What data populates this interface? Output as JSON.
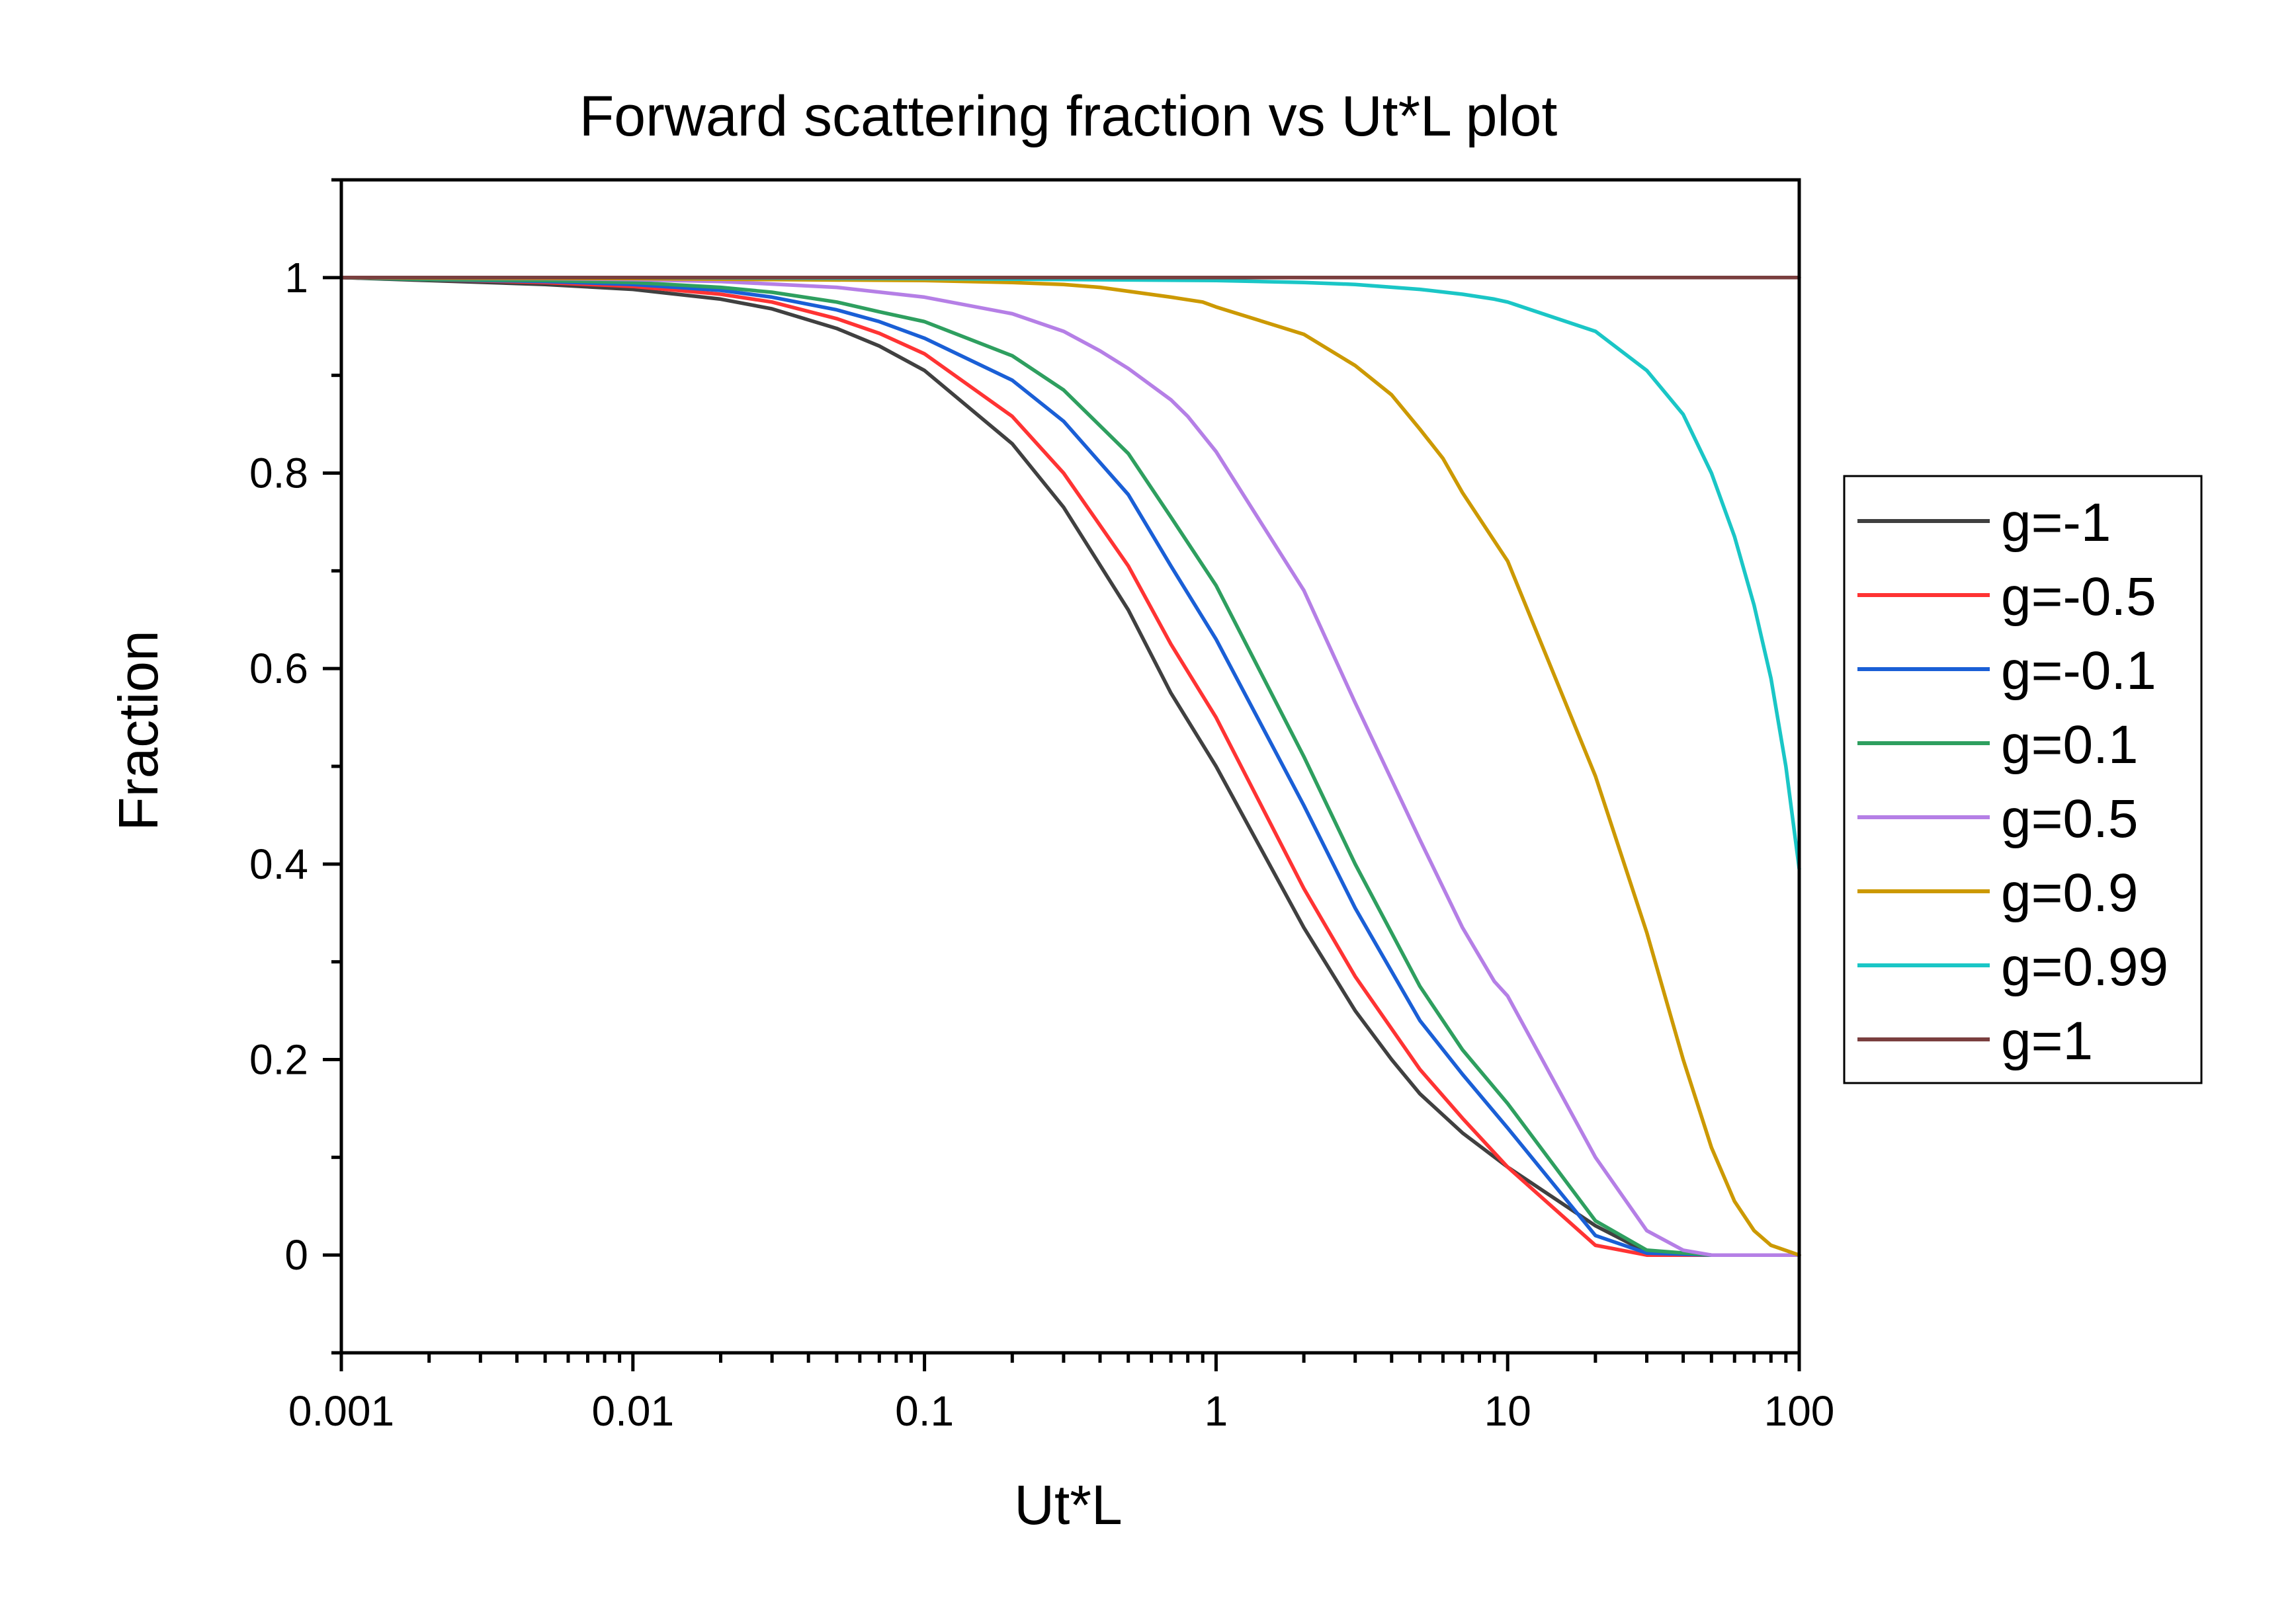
{
  "chart_data": {
    "type": "line",
    "title": "Forward scattering fraction vs Ut*L plot",
    "xlabel": "Ut*L",
    "ylabel": "Fraction",
    "xscale": "log",
    "xlim": [
      0.001,
      100
    ],
    "ylim": [
      -0.1,
      1.1
    ],
    "xticks": [
      {
        "value": 0.001,
        "label": "0.001"
      },
      {
        "value": 0.01,
        "label": "0.01"
      },
      {
        "value": 0.1,
        "label": "0.1"
      },
      {
        "value": 1,
        "label": "1"
      },
      {
        "value": 10,
        "label": "10"
      },
      {
        "value": 100,
        "label": "100"
      }
    ],
    "yticks": [
      {
        "value": 0,
        "label": "0"
      },
      {
        "value": 0.2,
        "label": "0.2"
      },
      {
        "value": 0.4,
        "label": "0.4"
      },
      {
        "value": 0.6,
        "label": "0.6"
      },
      {
        "value": 0.8,
        "label": "0.8"
      },
      {
        "value": 1,
        "label": "1"
      }
    ],
    "grid": false,
    "legend_position": "right",
    "series": [
      {
        "name": "g=-1",
        "color": "#404040",
        "x": [
          0.001,
          0.002,
          0.005,
          0.01,
          0.02,
          0.03,
          0.05,
          0.07,
          0.1,
          0.2,
          0.3,
          0.5,
          0.7,
          1,
          2,
          3,
          4,
          5,
          7,
          10,
          20,
          30,
          50,
          100
        ],
        "y": [
          1.0,
          0.997,
          0.993,
          0.988,
          0.978,
          0.968,
          0.948,
          0.93,
          0.905,
          0.83,
          0.765,
          0.66,
          0.575,
          0.5,
          0.335,
          0.25,
          0.2,
          0.165,
          0.125,
          0.09,
          0.03,
          0.003,
          0.0,
          0.0
        ]
      },
      {
        "name": "g=-0.5",
        "color": "#ff3333",
        "x": [
          0.001,
          0.002,
          0.005,
          0.01,
          0.02,
          0.03,
          0.05,
          0.07,
          0.1,
          0.2,
          0.3,
          0.5,
          0.7,
          1,
          2,
          3,
          5,
          7,
          10,
          20,
          30,
          50,
          100
        ],
        "y": [
          1.0,
          0.998,
          0.995,
          0.991,
          0.983,
          0.975,
          0.958,
          0.943,
          0.922,
          0.858,
          0.8,
          0.705,
          0.625,
          0.55,
          0.375,
          0.285,
          0.19,
          0.14,
          0.09,
          0.01,
          0.0,
          0.0,
          0.0
        ]
      },
      {
        "name": "g=-0.1",
        "color": "#1a5fd6",
        "x": [
          0.001,
          0.002,
          0.005,
          0.01,
          0.02,
          0.03,
          0.05,
          0.07,
          0.1,
          0.2,
          0.3,
          0.5,
          0.7,
          1,
          2,
          3,
          5,
          7,
          10,
          20,
          30,
          50,
          100
        ],
        "y": [
          1.0,
          0.998,
          0.996,
          0.993,
          0.987,
          0.98,
          0.967,
          0.955,
          0.938,
          0.895,
          0.853,
          0.778,
          0.705,
          0.63,
          0.46,
          0.355,
          0.24,
          0.185,
          0.13,
          0.02,
          0.002,
          0.0,
          0.0
        ]
      },
      {
        "name": "g=0.1",
        "color": "#2e9f5f",
        "x": [
          0.001,
          0.002,
          0.005,
          0.01,
          0.02,
          0.03,
          0.05,
          0.07,
          0.1,
          0.2,
          0.3,
          0.5,
          0.7,
          1,
          2,
          3,
          5,
          7,
          10,
          20,
          30,
          50,
          100
        ],
        "y": [
          1.0,
          0.998,
          0.997,
          0.995,
          0.99,
          0.985,
          0.975,
          0.965,
          0.955,
          0.92,
          0.885,
          0.82,
          0.755,
          0.685,
          0.51,
          0.4,
          0.275,
          0.21,
          0.155,
          0.035,
          0.005,
          0.0,
          0.0
        ]
      },
      {
        "name": "g=0.5",
        "color": "#b57fe6",
        "x": [
          0.001,
          0.005,
          0.01,
          0.02,
          0.05,
          0.1,
          0.2,
          0.3,
          0.4,
          0.5,
          0.7,
          0.8,
          1,
          2,
          3,
          5,
          7,
          9,
          10,
          20,
          30,
          40,
          50,
          100
        ],
        "y": [
          1.0,
          0.999,
          0.998,
          0.996,
          0.99,
          0.98,
          0.963,
          0.945,
          0.925,
          0.907,
          0.875,
          0.858,
          0.822,
          0.68,
          0.565,
          0.425,
          0.335,
          0.28,
          0.265,
          0.1,
          0.025,
          0.005,
          0.0,
          0.0
        ]
      },
      {
        "name": "g=0.9",
        "color": "#cc9900",
        "x": [
          0.001,
          0.01,
          0.1,
          0.2,
          0.3,
          0.4,
          0.5,
          0.7,
          0.9,
          1,
          2,
          3,
          4,
          5,
          6,
          7,
          10,
          20,
          30,
          40,
          50,
          60,
          70,
          80,
          100
        ],
        "y": [
          1.0,
          0.999,
          0.997,
          0.995,
          0.993,
          0.99,
          0.986,
          0.98,
          0.975,
          0.97,
          0.942,
          0.91,
          0.88,
          0.845,
          0.815,
          0.78,
          0.71,
          0.49,
          0.33,
          0.2,
          0.11,
          0.055,
          0.025,
          0.01,
          0.0
        ]
      },
      {
        "name": "g=0.99",
        "color": "#1ac6c6",
        "x": [
          0.001,
          0.01,
          0.1,
          1,
          2,
          3,
          5,
          7,
          9,
          10,
          20,
          30,
          40,
          50,
          60,
          70,
          80,
          90,
          100
        ],
        "y": [
          1.0,
          1.0,
          0.999,
          0.997,
          0.995,
          0.993,
          0.988,
          0.983,
          0.978,
          0.975,
          0.945,
          0.905,
          0.86,
          0.8,
          0.735,
          0.665,
          0.59,
          0.5,
          0.395
        ]
      },
      {
        "name": "g=1",
        "color": "#7a3f3f",
        "x": [
          0.001,
          100
        ],
        "y": [
          1.0,
          1.0
        ]
      }
    ]
  }
}
